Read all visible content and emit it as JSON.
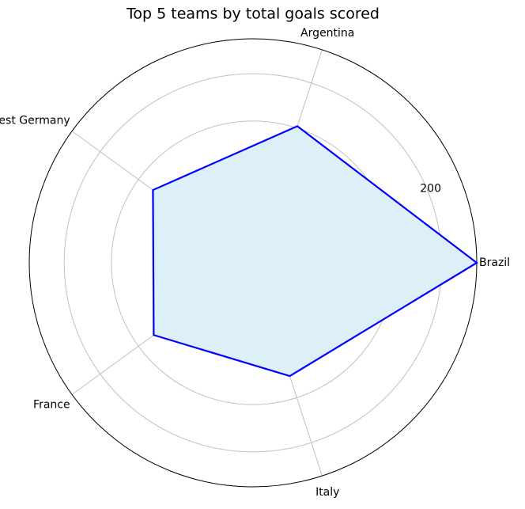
{
  "chart_data": {
    "type": "radar",
    "title": "Top 5 teams by total goals scored",
    "categories": [
      "Brazil",
      "Argentina",
      "West Germany",
      "France",
      "Italy"
    ],
    "series": [
      {
        "color": "#0000ff",
        "fill": "#ddeff7",
        "values": [
          237,
          152,
          131,
          130,
          126
        ]
      }
    ],
    "ylim": [
      0,
      237
    ],
    "yticks": [
      50,
      100,
      150,
      200
    ],
    "grid": true
  }
}
